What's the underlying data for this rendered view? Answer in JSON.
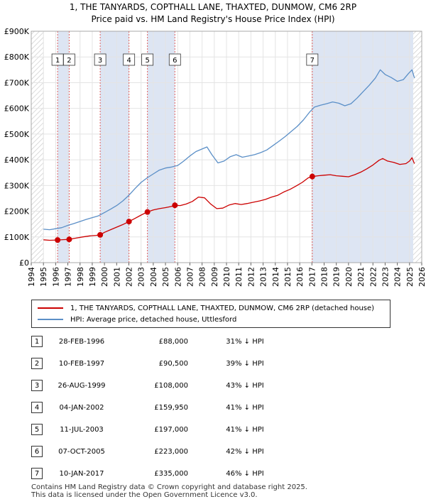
{
  "title_line1": "1, THE TANYARDS, COPTHALL LANE, THAXTED, DUNMOW, CM6 2RP",
  "title_line2": "Price paid vs. HM Land Registry's House Price Index (HPI)",
  "chart_data": {
    "type": "line",
    "ylim": [
      0,
      900000
    ],
    "xlim": [
      1994,
      2026
    ],
    "y_ticks": [
      {
        "value": 0,
        "label": "£0"
      },
      {
        "value": 100000,
        "label": "£100K"
      },
      {
        "value": 200000,
        "label": "£200K"
      },
      {
        "value": 300000,
        "label": "£300K"
      },
      {
        "value": 400000,
        "label": "£400K"
      },
      {
        "value": 500000,
        "label": "£500K"
      },
      {
        "value": 600000,
        "label": "£600K"
      },
      {
        "value": 700000,
        "label": "£700K"
      },
      {
        "value": 800000,
        "label": "£800K"
      },
      {
        "value": 900000,
        "label": "£900K"
      }
    ],
    "x_ticks": [
      "1994",
      "1995",
      "1996",
      "1997",
      "1998",
      "1999",
      "2000",
      "2001",
      "2002",
      "2003",
      "2004",
      "2005",
      "2006",
      "2007",
      "2008",
      "2009",
      "2010",
      "2011",
      "2012",
      "2013",
      "2014",
      "2015",
      "2016",
      "2017",
      "2018",
      "2019",
      "2020",
      "2021",
      "2022",
      "2023",
      "2024",
      "2025",
      "2026"
    ],
    "shaded_periods": [
      [
        1996.16,
        1997.11
      ],
      [
        1999.65,
        2002.01
      ],
      [
        2003.52,
        2005.77
      ],
      [
        2017.03,
        2025.3
      ]
    ],
    "hatched_periods": [
      [
        1994,
        1995.0
      ],
      [
        2025.3,
        2026
      ]
    ],
    "series": [
      {
        "name": "1, THE TANYARDS, COPTHALL LANE, THAXTED, DUNMOW, CM6 2RP (detached house)",
        "color": "#cc0000",
        "points": [
          [
            1995.0,
            89000
          ],
          [
            1995.5,
            87000
          ],
          [
            1996.16,
            88000
          ],
          [
            1996.6,
            89500
          ],
          [
            1997.11,
            90500
          ],
          [
            1997.6,
            95000
          ],
          [
            1998.2,
            100000
          ],
          [
            1998.8,
            104000
          ],
          [
            1999.3,
            106000
          ],
          [
            1999.65,
            108000
          ],
          [
            2000.0,
            118000
          ],
          [
            2000.5,
            128000
          ],
          [
            2001.0,
            138000
          ],
          [
            2001.5,
            148000
          ],
          [
            2002.01,
            159950
          ],
          [
            2002.5,
            172000
          ],
          [
            2003.0,
            185000
          ],
          [
            2003.52,
            197000
          ],
          [
            2004.0,
            205000
          ],
          [
            2004.5,
            210000
          ],
          [
            2005.0,
            214000
          ],
          [
            2005.5,
            219000
          ],
          [
            2005.77,
            223000
          ],
          [
            2006.2,
            222000
          ],
          [
            2006.7,
            228000
          ],
          [
            2007.2,
            238000
          ],
          [
            2007.7,
            255000
          ],
          [
            2008.2,
            252000
          ],
          [
            2008.7,
            228000
          ],
          [
            2009.2,
            210000
          ],
          [
            2009.7,
            212000
          ],
          [
            2010.2,
            224000
          ],
          [
            2010.7,
            230000
          ],
          [
            2011.2,
            226000
          ],
          [
            2011.7,
            230000
          ],
          [
            2012.2,
            235000
          ],
          [
            2012.7,
            240000
          ],
          [
            2013.2,
            246000
          ],
          [
            2013.7,
            255000
          ],
          [
            2014.2,
            262000
          ],
          [
            2014.7,
            275000
          ],
          [
            2015.2,
            285000
          ],
          [
            2015.7,
            298000
          ],
          [
            2016.2,
            312000
          ],
          [
            2016.7,
            330000
          ],
          [
            2017.03,
            335000
          ],
          [
            2017.5,
            338000
          ],
          [
            2018.0,
            340000
          ],
          [
            2018.5,
            342000
          ],
          [
            2019.0,
            338000
          ],
          [
            2019.5,
            336000
          ],
          [
            2020.0,
            334000
          ],
          [
            2020.5,
            342000
          ],
          [
            2021.0,
            352000
          ],
          [
            2021.5,
            365000
          ],
          [
            2022.0,
            380000
          ],
          [
            2022.5,
            398000
          ],
          [
            2022.8,
            405000
          ],
          [
            2023.2,
            395000
          ],
          [
            2023.7,
            390000
          ],
          [
            2024.2,
            382000
          ],
          [
            2024.7,
            385000
          ],
          [
            2025.0,
            395000
          ],
          [
            2025.2,
            408000
          ],
          [
            2025.4,
            385000
          ]
        ]
      },
      {
        "name": "HPI: Average price, detached house, Uttlesford",
        "color": "#5b8fc7",
        "points": [
          [
            1995.0,
            130000
          ],
          [
            1995.5,
            128000
          ],
          [
            1996.0,
            132000
          ],
          [
            1996.5,
            136000
          ],
          [
            1997.0,
            145000
          ],
          [
            1997.5,
            152000
          ],
          [
            1998.0,
            160000
          ],
          [
            1998.5,
            168000
          ],
          [
            1999.0,
            175000
          ],
          [
            1999.5,
            182000
          ],
          [
            2000.0,
            195000
          ],
          [
            2000.5,
            208000
          ],
          [
            2001.0,
            222000
          ],
          [
            2001.5,
            240000
          ],
          [
            2002.0,
            262000
          ],
          [
            2002.5,
            288000
          ],
          [
            2003.0,
            312000
          ],
          [
            2003.5,
            330000
          ],
          [
            2004.0,
            345000
          ],
          [
            2004.5,
            360000
          ],
          [
            2005.0,
            368000
          ],
          [
            2005.5,
            372000
          ],
          [
            2006.0,
            378000
          ],
          [
            2006.5,
            395000
          ],
          [
            2007.0,
            415000
          ],
          [
            2007.5,
            432000
          ],
          [
            2008.0,
            442000
          ],
          [
            2008.4,
            450000
          ],
          [
            2008.8,
            420000
          ],
          [
            2009.3,
            388000
          ],
          [
            2009.8,
            395000
          ],
          [
            2010.3,
            412000
          ],
          [
            2010.8,
            420000
          ],
          [
            2011.3,
            410000
          ],
          [
            2011.8,
            415000
          ],
          [
            2012.3,
            420000
          ],
          [
            2012.8,
            428000
          ],
          [
            2013.3,
            438000
          ],
          [
            2013.8,
            455000
          ],
          [
            2014.3,
            472000
          ],
          [
            2014.8,
            490000
          ],
          [
            2015.3,
            510000
          ],
          [
            2015.8,
            530000
          ],
          [
            2016.3,
            555000
          ],
          [
            2016.8,
            585000
          ],
          [
            2017.2,
            605000
          ],
          [
            2017.7,
            612000
          ],
          [
            2018.2,
            618000
          ],
          [
            2018.7,
            625000
          ],
          [
            2019.2,
            620000
          ],
          [
            2019.7,
            610000
          ],
          [
            2020.2,
            618000
          ],
          [
            2020.7,
            640000
          ],
          [
            2021.2,
            665000
          ],
          [
            2021.7,
            690000
          ],
          [
            2022.2,
            718000
          ],
          [
            2022.6,
            750000
          ],
          [
            2023.0,
            732000
          ],
          [
            2023.5,
            720000
          ],
          [
            2024.0,
            705000
          ],
          [
            2024.5,
            712000
          ],
          [
            2024.9,
            735000
          ],
          [
            2025.2,
            750000
          ],
          [
            2025.4,
            718000
          ]
        ]
      }
    ],
    "sales": [
      {
        "num": "1",
        "year": 1996.16,
        "date": "28-FEB-1996",
        "price": 88000,
        "price_label": "£88,000",
        "hpi": "31% ↓ HPI"
      },
      {
        "num": "2",
        "year": 1997.11,
        "date": "10-FEB-1997",
        "price": 90500,
        "price_label": "£90,500",
        "hpi": "39% ↓ HPI"
      },
      {
        "num": "3",
        "year": 1999.65,
        "date": "26-AUG-1999",
        "price": 108000,
        "price_label": "£108,000",
        "hpi": "43% ↓ HPI"
      },
      {
        "num": "4",
        "year": 2002.01,
        "date": "04-JAN-2002",
        "price": 159950,
        "price_label": "£159,950",
        "hpi": "41% ↓ HPI"
      },
      {
        "num": "5",
        "year": 2003.52,
        "date": "11-JUL-2003",
        "price": 197000,
        "price_label": "£197,000",
        "hpi": "41% ↓ HPI"
      },
      {
        "num": "6",
        "year": 2005.77,
        "date": "07-OCT-2005",
        "price": 223000,
        "price_label": "£223,000",
        "hpi": "42% ↓ HPI"
      },
      {
        "num": "7",
        "year": 2017.03,
        "date": "10-JAN-2017",
        "price": 335000,
        "price_label": "£335,000",
        "hpi": "46% ↓ HPI"
      }
    ]
  },
  "legend": {
    "property_label": "1, THE TANYARDS, COPTHALL LANE, THAXTED, DUNMOW, CM6 2RP (detached house)",
    "hpi_label": "HPI: Average price, detached house, Uttlesford"
  },
  "footer_line1": "Contains HM Land Registry data © Crown copyright and database right 2025.",
  "footer_line2": "This data is licensed under the Open Government Licence v3.0."
}
